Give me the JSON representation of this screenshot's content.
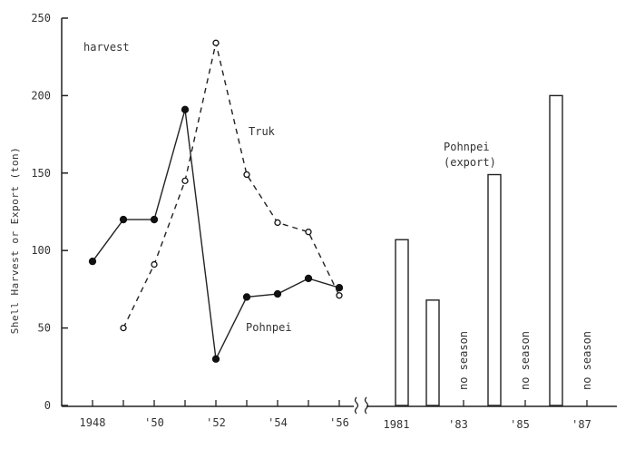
{
  "chart_data": {
    "type": "line+bar",
    "title": "",
    "xlabel": "",
    "ylabel": "Shell Harvest or Export (ton)",
    "ylim": [
      0,
      250
    ],
    "yticks": [
      0,
      50,
      100,
      150,
      200,
      250
    ],
    "grid": false,
    "axis_break": "between 1956 and 1981",
    "annotations": {
      "harvest": "harvest",
      "truk": "Truk",
      "pohnpei": "Pohnpei",
      "pohnpei_export_line1": "Pohnpei",
      "pohnpei_export_line2": "(export)",
      "no_season": "no season"
    },
    "left_panel": {
      "label": "harvest",
      "x": [
        1948,
        1949,
        1950,
        1951,
        1952,
        1953,
        1954,
        1955,
        1956
      ],
      "xtick_labels": [
        "1948",
        "",
        "'50",
        "",
        "'52",
        "",
        "'54",
        "",
        "'56"
      ],
      "series": [
        {
          "name": "Pohnpei",
          "style": "solid line, filled circles",
          "x": [
            1948,
            1949,
            1950,
            1951,
            1952,
            1953,
            1954,
            1955,
            1956
          ],
          "values": [
            93,
            120,
            120,
            191,
            30,
            70,
            72,
            82,
            76
          ]
        },
        {
          "name": "Truk",
          "style": "dashed line, open circles",
          "x": [
            1949,
            1950,
            1951,
            1952,
            1953,
            1954,
            1955,
            1956
          ],
          "values": [
            50,
            91,
            145,
            234,
            149,
            118,
            112,
            71
          ]
        }
      ]
    },
    "right_panel": {
      "label": "Pohnpei (export)",
      "type": "bar",
      "categories": [
        "1981",
        "1982",
        "1983",
        "1984",
        "1985",
        "1986",
        "1987"
      ],
      "xtick_labels": [
        "1981",
        "",
        "'83",
        "",
        "'85",
        "",
        "'87"
      ],
      "values": [
        107,
        68,
        null,
        149,
        null,
        200,
        null
      ],
      "notes": [
        "",
        "",
        "no season",
        "",
        "no season",
        "",
        "no season"
      ]
    }
  }
}
